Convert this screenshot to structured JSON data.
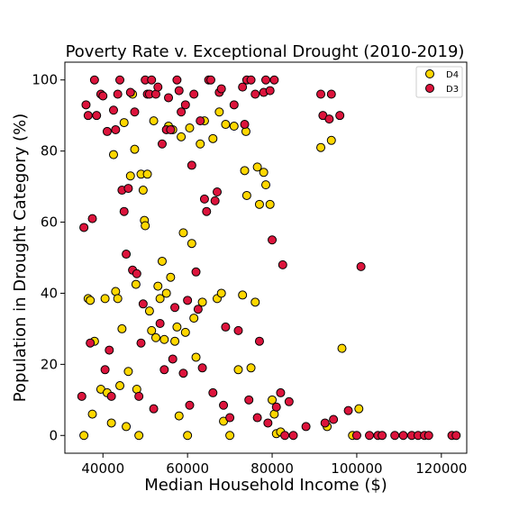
{
  "chart_data": {
    "type": "scatter",
    "title": "Poverty Rate v. Exceptional Drought (2010-2019)",
    "xlabel": "Median Household Income ($)",
    "ylabel": "Population in Drought Category (%)",
    "xlim": [
      31000,
      126000
    ],
    "ylim": [
      -5,
      105
    ],
    "xticks": [
      40000,
      60000,
      80000,
      100000,
      120000
    ],
    "yticks": [
      0,
      20,
      40,
      60,
      80,
      100
    ],
    "grid": false,
    "legend_position": "top-right",
    "series": [
      {
        "name": "D4",
        "color": "#FFD700",
        "points": [
          [
            35500,
            0
          ],
          [
            36500,
            38.5
          ],
          [
            37000,
            38
          ],
          [
            37500,
            6
          ],
          [
            38000,
            26.5
          ],
          [
            39500,
            13
          ],
          [
            40500,
            38.5
          ],
          [
            41000,
            12
          ],
          [
            42000,
            3.5
          ],
          [
            42500,
            79
          ],
          [
            43000,
            40.5
          ],
          [
            43500,
            38.5
          ],
          [
            44000,
            14
          ],
          [
            44500,
            30
          ],
          [
            45000,
            88
          ],
          [
            45500,
            2.5
          ],
          [
            46000,
            18
          ],
          [
            46500,
            73
          ],
          [
            47000,
            96
          ],
          [
            47500,
            80.5
          ],
          [
            47800,
            42.5
          ],
          [
            48000,
            13
          ],
          [
            48500,
            0
          ],
          [
            49000,
            73.5
          ],
          [
            49500,
            69
          ],
          [
            49800,
            60.5
          ],
          [
            50000,
            59
          ],
          [
            50500,
            73.5
          ],
          [
            51000,
            35
          ],
          [
            51500,
            29.5
          ],
          [
            52000,
            88.5
          ],
          [
            52500,
            27.5
          ],
          [
            53000,
            42
          ],
          [
            53500,
            38.5
          ],
          [
            54000,
            49
          ],
          [
            54500,
            27
          ],
          [
            55000,
            40
          ],
          [
            55500,
            87
          ],
          [
            56000,
            44.5
          ],
          [
            56500,
            86
          ],
          [
            57000,
            26.5
          ],
          [
            57500,
            30.5
          ],
          [
            58000,
            5.5
          ],
          [
            58500,
            84
          ],
          [
            59000,
            57
          ],
          [
            59500,
            29
          ],
          [
            60000,
            0
          ],
          [
            60500,
            86.5
          ],
          [
            61000,
            54
          ],
          [
            61500,
            33
          ],
          [
            62000,
            22
          ],
          [
            63000,
            82
          ],
          [
            63500,
            37.5
          ],
          [
            64000,
            88.5
          ],
          [
            66000,
            83.5
          ],
          [
            67000,
            38.5
          ],
          [
            67500,
            91
          ],
          [
            68000,
            40
          ],
          [
            68500,
            4
          ],
          [
            69000,
            87.5
          ],
          [
            70000,
            0
          ],
          [
            71000,
            87
          ],
          [
            72000,
            18.5
          ],
          [
            73000,
            39.5
          ],
          [
            73500,
            74.5
          ],
          [
            73800,
            85.5
          ],
          [
            74000,
            67.5
          ],
          [
            75000,
            19
          ],
          [
            76000,
            37.5
          ],
          [
            76500,
            75.5
          ],
          [
            77000,
            65
          ],
          [
            78000,
            74
          ],
          [
            78500,
            70.5
          ],
          [
            79500,
            65
          ],
          [
            80000,
            10
          ],
          [
            80500,
            6
          ],
          [
            81000,
            0.5
          ],
          [
            82000,
            1
          ],
          [
            91500,
            81
          ],
          [
            93000,
            2.5
          ],
          [
            94000,
            83
          ],
          [
            96500,
            24.5
          ],
          [
            99000,
            0
          ],
          [
            100500,
            7.5
          ]
        ]
      },
      {
        "name": "D3",
        "color": "#DC143C",
        "points": [
          [
            35000,
            11
          ],
          [
            35500,
            58.5
          ],
          [
            36000,
            93
          ],
          [
            36500,
            90
          ],
          [
            37000,
            26
          ],
          [
            37500,
            61
          ],
          [
            38000,
            100
          ],
          [
            38500,
            90
          ],
          [
            39500,
            96
          ],
          [
            40000,
            95.5
          ],
          [
            40500,
            18.5
          ],
          [
            41000,
            85.5
          ],
          [
            41500,
            24
          ],
          [
            42000,
            11
          ],
          [
            42500,
            91.5
          ],
          [
            43000,
            86
          ],
          [
            43500,
            96
          ],
          [
            44000,
            100
          ],
          [
            44500,
            69
          ],
          [
            45000,
            63
          ],
          [
            45500,
            51
          ],
          [
            46000,
            69.5
          ],
          [
            46500,
            96.5
          ],
          [
            47000,
            46.5
          ],
          [
            47500,
            91
          ],
          [
            48000,
            45.5
          ],
          [
            48500,
            11
          ],
          [
            49000,
            26
          ],
          [
            49500,
            37
          ],
          [
            50000,
            100
          ],
          [
            50500,
            96
          ],
          [
            51000,
            96
          ],
          [
            51500,
            100
          ],
          [
            52000,
            7.5
          ],
          [
            52500,
            96
          ],
          [
            53000,
            98
          ],
          [
            53500,
            31.5
          ],
          [
            54000,
            82
          ],
          [
            54500,
            18.5
          ],
          [
            55000,
            86
          ],
          [
            55500,
            95
          ],
          [
            56000,
            86
          ],
          [
            56500,
            21.5
          ],
          [
            57000,
            36
          ],
          [
            57500,
            100
          ],
          [
            58000,
            97
          ],
          [
            58500,
            91
          ],
          [
            59000,
            17.5
          ],
          [
            59500,
            93
          ],
          [
            60000,
            38
          ],
          [
            60500,
            8.5
          ],
          [
            61000,
            76
          ],
          [
            61500,
            96
          ],
          [
            62000,
            46
          ],
          [
            62500,
            35.5
          ],
          [
            63000,
            88.5
          ],
          [
            63500,
            19
          ],
          [
            64000,
            66.5
          ],
          [
            64500,
            63
          ],
          [
            65000,
            100
          ],
          [
            65500,
            100
          ],
          [
            66000,
            12
          ],
          [
            66500,
            66
          ],
          [
            67000,
            68.5
          ],
          [
            67500,
            96.5
          ],
          [
            68000,
            97.5
          ],
          [
            68500,
            8.5
          ],
          [
            69000,
            30.5
          ],
          [
            70000,
            5
          ],
          [
            71000,
            93
          ],
          [
            72000,
            29.5
          ],
          [
            73000,
            98
          ],
          [
            73500,
            87.5
          ],
          [
            74000,
            100
          ],
          [
            74500,
            10
          ],
          [
            75000,
            100
          ],
          [
            76000,
            96
          ],
          [
            76500,
            5
          ],
          [
            77000,
            26.5
          ],
          [
            78000,
            96.5
          ],
          [
            78500,
            100
          ],
          [
            79000,
            3.5
          ],
          [
            79500,
            97
          ],
          [
            80000,
            55
          ],
          [
            80500,
            100
          ],
          [
            81000,
            8
          ],
          [
            82000,
            12
          ],
          [
            82500,
            48
          ],
          [
            83000,
            0
          ],
          [
            84000,
            9.5
          ],
          [
            85000,
            0
          ],
          [
            88000,
            2.5
          ],
          [
            91500,
            96
          ],
          [
            92000,
            90
          ],
          [
            92500,
            3.5
          ],
          [
            93500,
            89
          ],
          [
            94000,
            96
          ],
          [
            94500,
            4.5
          ],
          [
            96000,
            90
          ],
          [
            98000,
            7
          ],
          [
            100000,
            0
          ],
          [
            101000,
            47.5
          ],
          [
            103000,
            0
          ],
          [
            105000,
            0
          ],
          [
            106000,
            0
          ],
          [
            109000,
            0
          ],
          [
            111000,
            0
          ],
          [
            113000,
            0
          ],
          [
            114500,
            0
          ],
          [
            116000,
            0
          ],
          [
            117000,
            0
          ],
          [
            122500,
            0
          ],
          [
            123500,
            0
          ]
        ]
      }
    ]
  }
}
